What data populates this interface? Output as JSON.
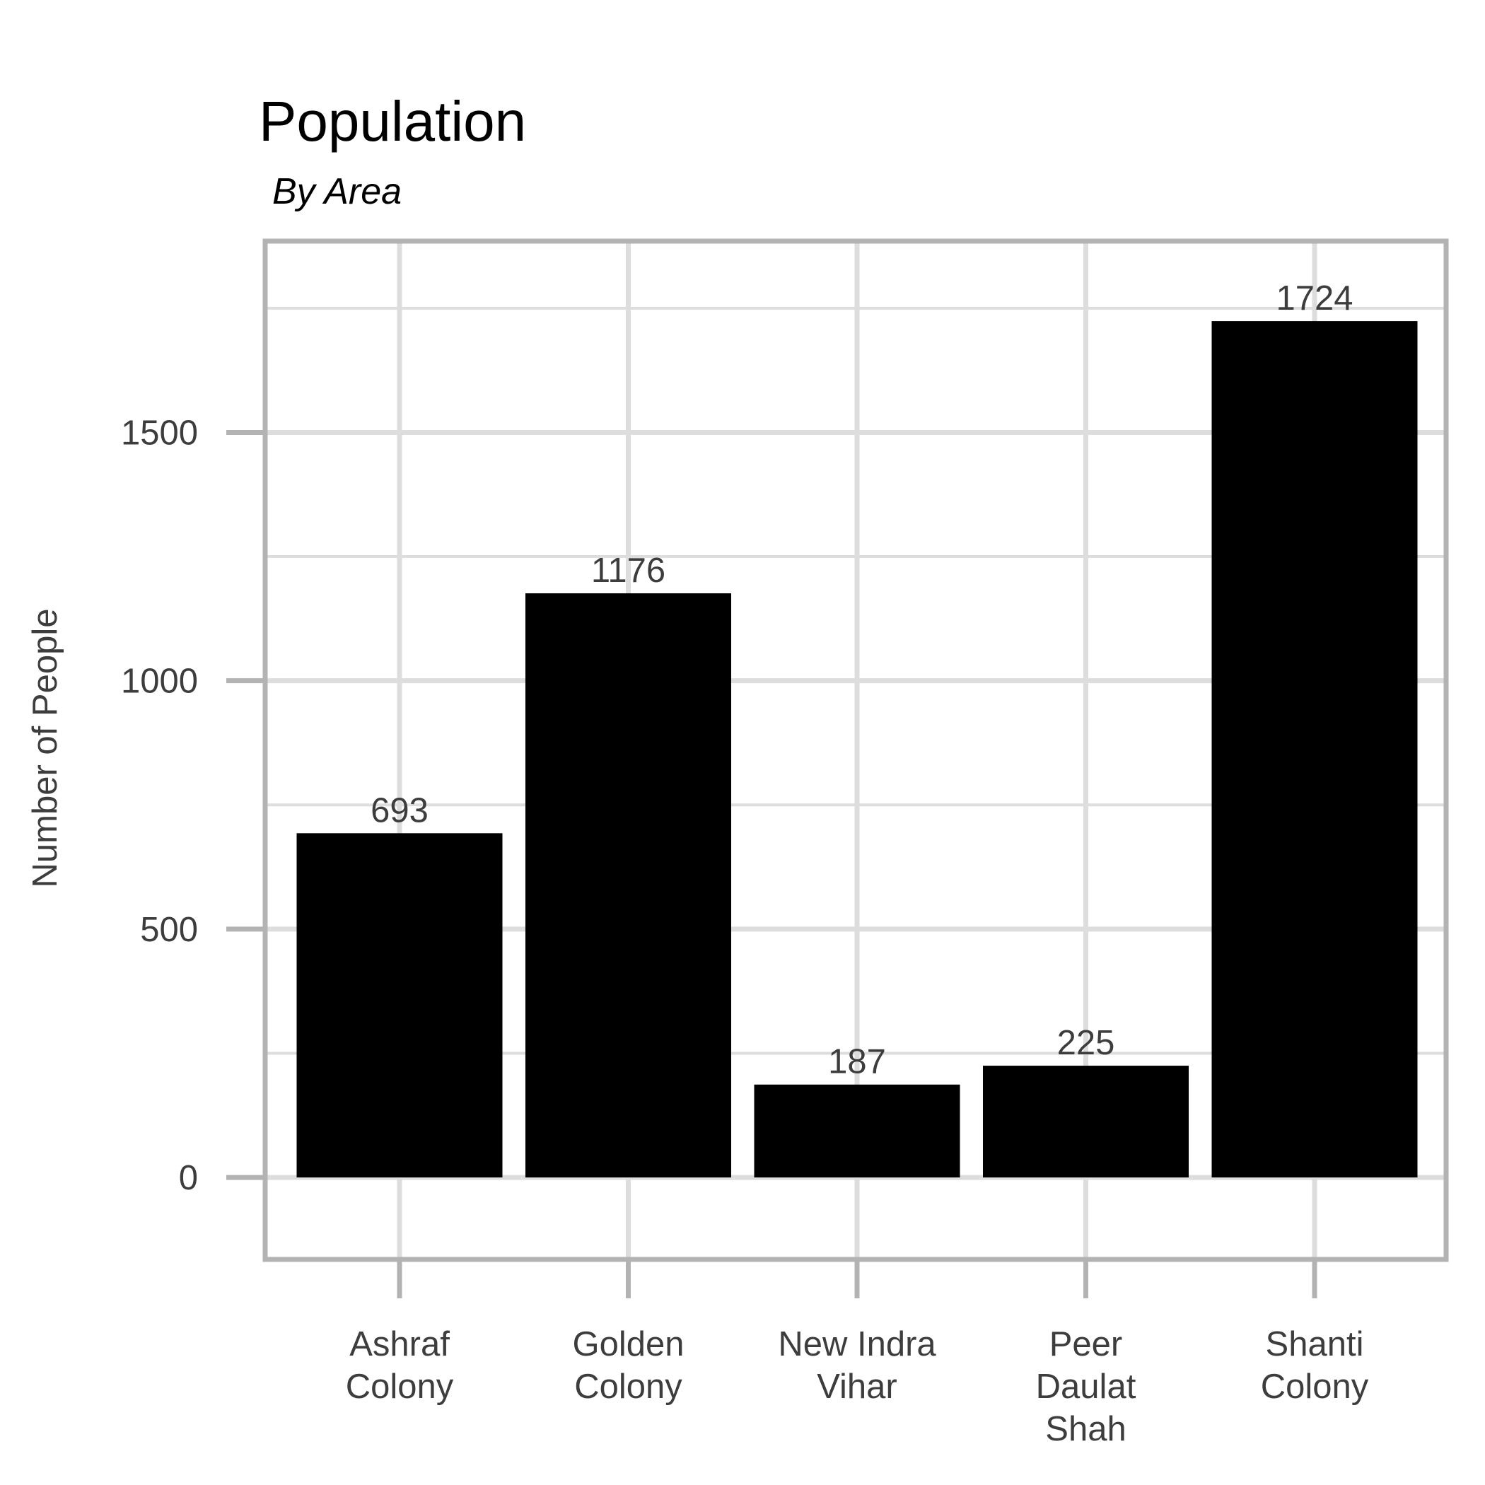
{
  "chart_data": {
    "type": "bar",
    "title": "Population",
    "subtitle": "By Area",
    "xlabel": "",
    "ylabel": "Number of People",
    "categories": [
      "Ashraf Colony",
      "Golden Colony",
      "New Indra Vihar",
      "Peer Daulat Shah",
      "Shanti Colony"
    ],
    "category_lines": [
      [
        "Ashraf",
        "Colony"
      ],
      [
        "Golden",
        "Colony"
      ],
      [
        "New Indra",
        "Vihar"
      ],
      [
        "Peer",
        "Daulat",
        "Shah"
      ],
      [
        "Shanti",
        "Colony"
      ]
    ],
    "values": [
      693,
      1176,
      187,
      225,
      1724
    ],
    "data_labels": [
      "693",
      "1176",
      "187",
      "225",
      "1724"
    ],
    "yticks": [
      0,
      500,
      1000,
      1500
    ],
    "ytick_labels": [
      "0",
      "500",
      "1000",
      "1500"
    ],
    "ylim": [
      -165,
      1885
    ],
    "grid": true,
    "legend": "none",
    "colors": {
      "bar": "#000000",
      "grid": "#dddddd",
      "frame": "#b3b3b3",
      "text": "#3d3d3d"
    }
  }
}
